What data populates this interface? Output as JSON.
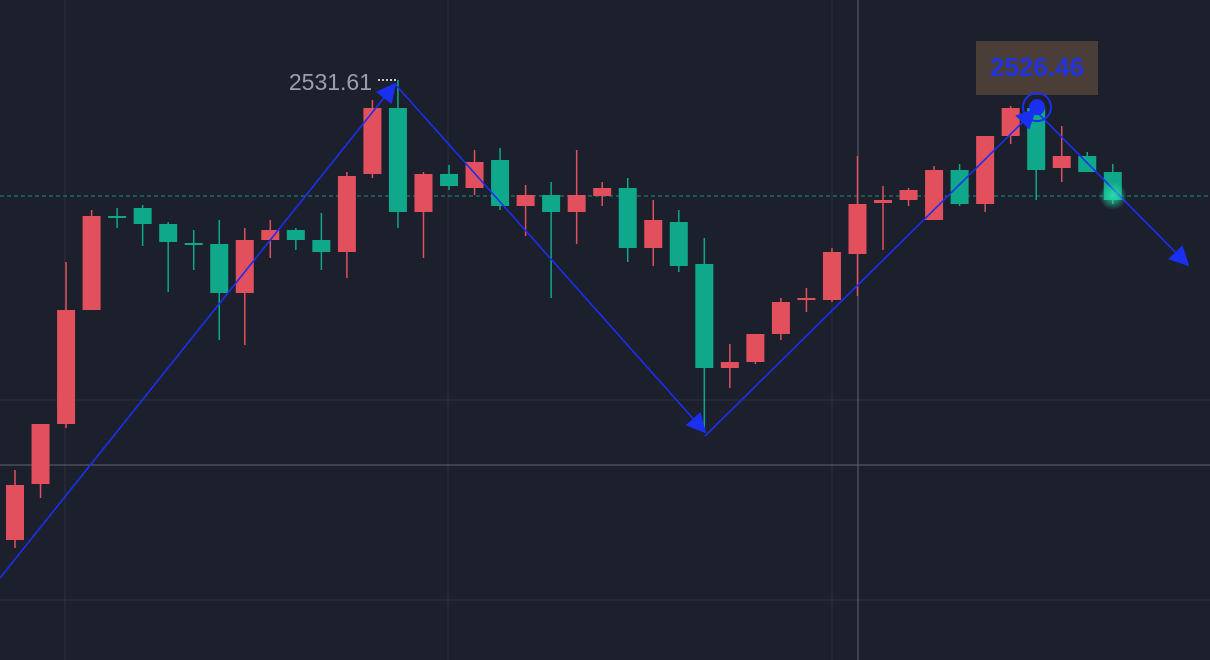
{
  "chart_data": {
    "type": "candlestick",
    "ylim": [
      2421.41,
      2546.81
    ],
    "up_color": "#e2505d",
    "down_color": "#0fa88a",
    "candles": {
      "open": [
        2444.21,
        2454.85,
        2466.25,
        2487.91,
        2505.77,
        2507.29,
        2504.25,
        2500.64,
        2500.45,
        2491.14,
        2501.21,
        2503.11,
        2501.21,
        2498.93,
        2513.75,
        2526.29,
        2506.53,
        2513.75,
        2511.09,
        2516.41,
        2507.67,
        2509.76,
        2506.53,
        2509.57,
        2511.09,
        2499.69,
        2504.63,
        2496.65,
        2476.89,
        2478.03,
        2483.35,
        2489.81,
        2489.81,
        2498.55,
        2508.24,
        2508.81,
        2505.01,
        2514.51,
        2508.05,
        2520.97,
        2526.29,
        2514.89,
        2517.17,
        2514.13
      ],
      "high": [
        2457.51,
        2466.25,
        2497.03,
        2506.91,
        2507.29,
        2507.86,
        2504.63,
        2503.11,
        2505.01,
        2503.49,
        2505.01,
        2503.49,
        2506.34,
        2514.13,
        2527.81,
        2531.61,
        2514.13,
        2515.46,
        2518.31,
        2518.69,
        2511.66,
        2512.23,
        2518.31,
        2512.23,
        2512.99,
        2508.81,
        2506.91,
        2501.59,
        2481.45,
        2483.35,
        2490.19,
        2492.09,
        2499.69,
        2517.17,
        2511.47,
        2511.09,
        2515.27,
        2515.65,
        2520.97,
        2526.67,
        2527.81,
        2522.87,
        2517.93,
        2515.65
      ],
      "low": [
        2442.69,
        2452.19,
        2465.49,
        2487.91,
        2503.49,
        2500.07,
        2491.33,
        2495.51,
        2482.21,
        2481.26,
        2497.79,
        2499.31,
        2495.51,
        2493.99,
        2512.99,
        2503.49,
        2497.79,
        2510.71,
        2509.76,
        2506.91,
        2501.97,
        2490.19,
        2500.45,
        2507.67,
        2497.03,
        2496.27,
        2495.13,
        2464.73,
        2473.09,
        2477.65,
        2482.21,
        2487.53,
        2489.43,
        2490.57,
        2499.31,
        2507.67,
        2505.01,
        2507.67,
        2506.53,
        2519.45,
        2508.81,
        2512.23,
        2514.13,
        2508.05
      ],
      "close": [
        2454.66,
        2466.25,
        2487.91,
        2505.77,
        2505.39,
        2504.25,
        2500.83,
        2500.26,
        2491.14,
        2501.21,
        2503.11,
        2501.21,
        2498.93,
        2513.37,
        2526.29,
        2506.53,
        2513.75,
        2511.47,
        2516.03,
        2507.67,
        2509.76,
        2506.53,
        2509.76,
        2511.09,
        2499.69,
        2505.01,
        2496.27,
        2476.89,
        2478.03,
        2483.35,
        2489.43,
        2490.19,
        2498.93,
        2508.05,
        2508.81,
        2510.71,
        2514.51,
        2508.05,
        2520.97,
        2526.29,
        2514.51,
        2517.17,
        2514.13,
        2508.81
      ]
    },
    "price_line": 2509.57,
    "high_marker": 2531.61,
    "selected_price": 2526.46
  }
}
